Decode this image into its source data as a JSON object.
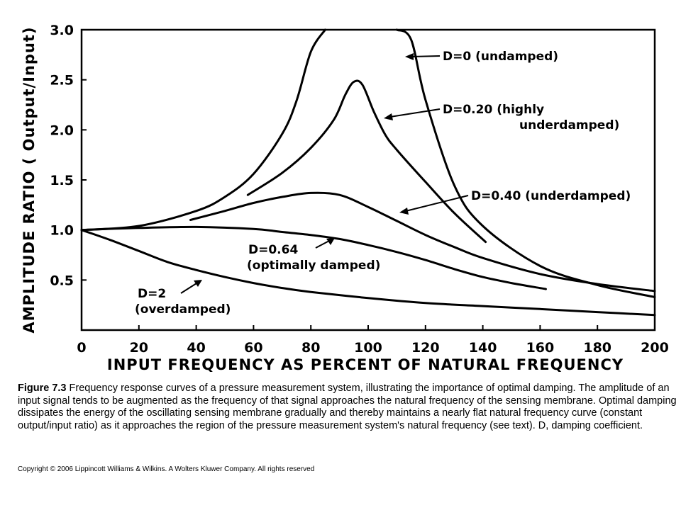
{
  "chart_data": {
    "type": "line",
    "xlabel": "INPUT FREQUENCY AS PERCENT OF NATURAL FREQUENCY",
    "ylabel": "AMPLITUDE RATIO ( Output/Input)",
    "xlim": [
      0,
      200
    ],
    "ylim": [
      0,
      3.0
    ],
    "x_ticks": [
      "0",
      "20",
      "40",
      "60",
      "80",
      "100",
      "120",
      "140",
      "160",
      "180",
      "200"
    ],
    "y_ticks": [
      "0.5",
      "1.0",
      "1.5",
      "2.0",
      "2.5",
      "3.0"
    ],
    "grid": false,
    "series": [
      {
        "name": "D=0 (undamped)",
        "x": [
          0,
          20,
          40,
          50,
          60,
          70,
          75,
          80,
          85,
          110,
          115,
          120,
          130,
          140,
          160,
          180,
          200
        ],
        "y": [
          1.0,
          1.04,
          1.19,
          1.33,
          1.56,
          1.96,
          2.29,
          2.78,
          3.0,
          3.0,
          2.9,
          2.3,
          1.45,
          1.04,
          0.64,
          0.45,
          0.33
        ]
      },
      {
        "name": "D=0.20 (highly underdamped)",
        "x": [
          58,
          70,
          80,
          88,
          92,
          95,
          98,
          102,
          106,
          110,
          120,
          130,
          141
        ],
        "y": [
          1.35,
          1.57,
          1.82,
          2.1,
          2.35,
          2.48,
          2.45,
          2.18,
          1.95,
          1.8,
          1.48,
          1.17,
          0.88
        ]
      },
      {
        "name": "D=0.40 (underdamped)",
        "x": [
          38,
          50,
          60,
          70,
          80,
          90,
          100,
          110,
          120,
          130,
          140,
          160,
          180,
          200
        ],
        "y": [
          1.1,
          1.19,
          1.27,
          1.33,
          1.37,
          1.35,
          1.23,
          1.09,
          0.95,
          0.83,
          0.72,
          0.56,
          0.46,
          0.39
        ]
      },
      {
        "name": "D=0.64 (optimally damped)",
        "x": [
          0,
          20,
          40,
          60,
          70,
          80,
          90,
          100,
          110,
          120,
          130,
          140,
          150,
          162
        ],
        "y": [
          1.0,
          1.02,
          1.03,
          1.01,
          0.98,
          0.95,
          0.91,
          0.85,
          0.78,
          0.7,
          0.61,
          0.53,
          0.47,
          0.41
        ]
      },
      {
        "name": "D=2 (overdamped)",
        "x": [
          0,
          10,
          20,
          30,
          40,
          50,
          60,
          70,
          80,
          100,
          120,
          140,
          160,
          180,
          200
        ],
        "y": [
          1.0,
          0.9,
          0.79,
          0.68,
          0.6,
          0.53,
          0.47,
          0.42,
          0.38,
          0.32,
          0.27,
          0.24,
          0.21,
          0.18,
          0.15
        ]
      }
    ],
    "annotations": [
      {
        "line1": "D=0 (undamped)",
        "line2": ""
      },
      {
        "line1": "D=0.20 (highly",
        "line2": "underdamped)"
      },
      {
        "line1": "D=0.40 (underdamped)",
        "line2": ""
      },
      {
        "line1": "D=0.64",
        "line2": "(optimally damped)"
      },
      {
        "line1": "D=2",
        "line2": "(overdamped)"
      }
    ],
    "line_color": "#000000"
  },
  "caption": {
    "figure_label": "Figure 7.3",
    "text": "Frequency response curves of a pressure measurement system, illustrating the importance of optimal damping. The amplitude of an input signal tends to be augmented as the frequency of that signal approaches the natural frequency of the sensing membrane. Optimal damping dissipates the energy of the oscillating sensing membrane gradually and thereby maintains a nearly flat natural frequency curve (constant output/input ratio) as it approaches the region of the pressure measurement system's natural frequency (see text). D, damping coefficient."
  },
  "copyright": "Copyright © 2006 Lippincott Williams & Wilkins. A Wolters Kluwer Company. All rights reserved"
}
